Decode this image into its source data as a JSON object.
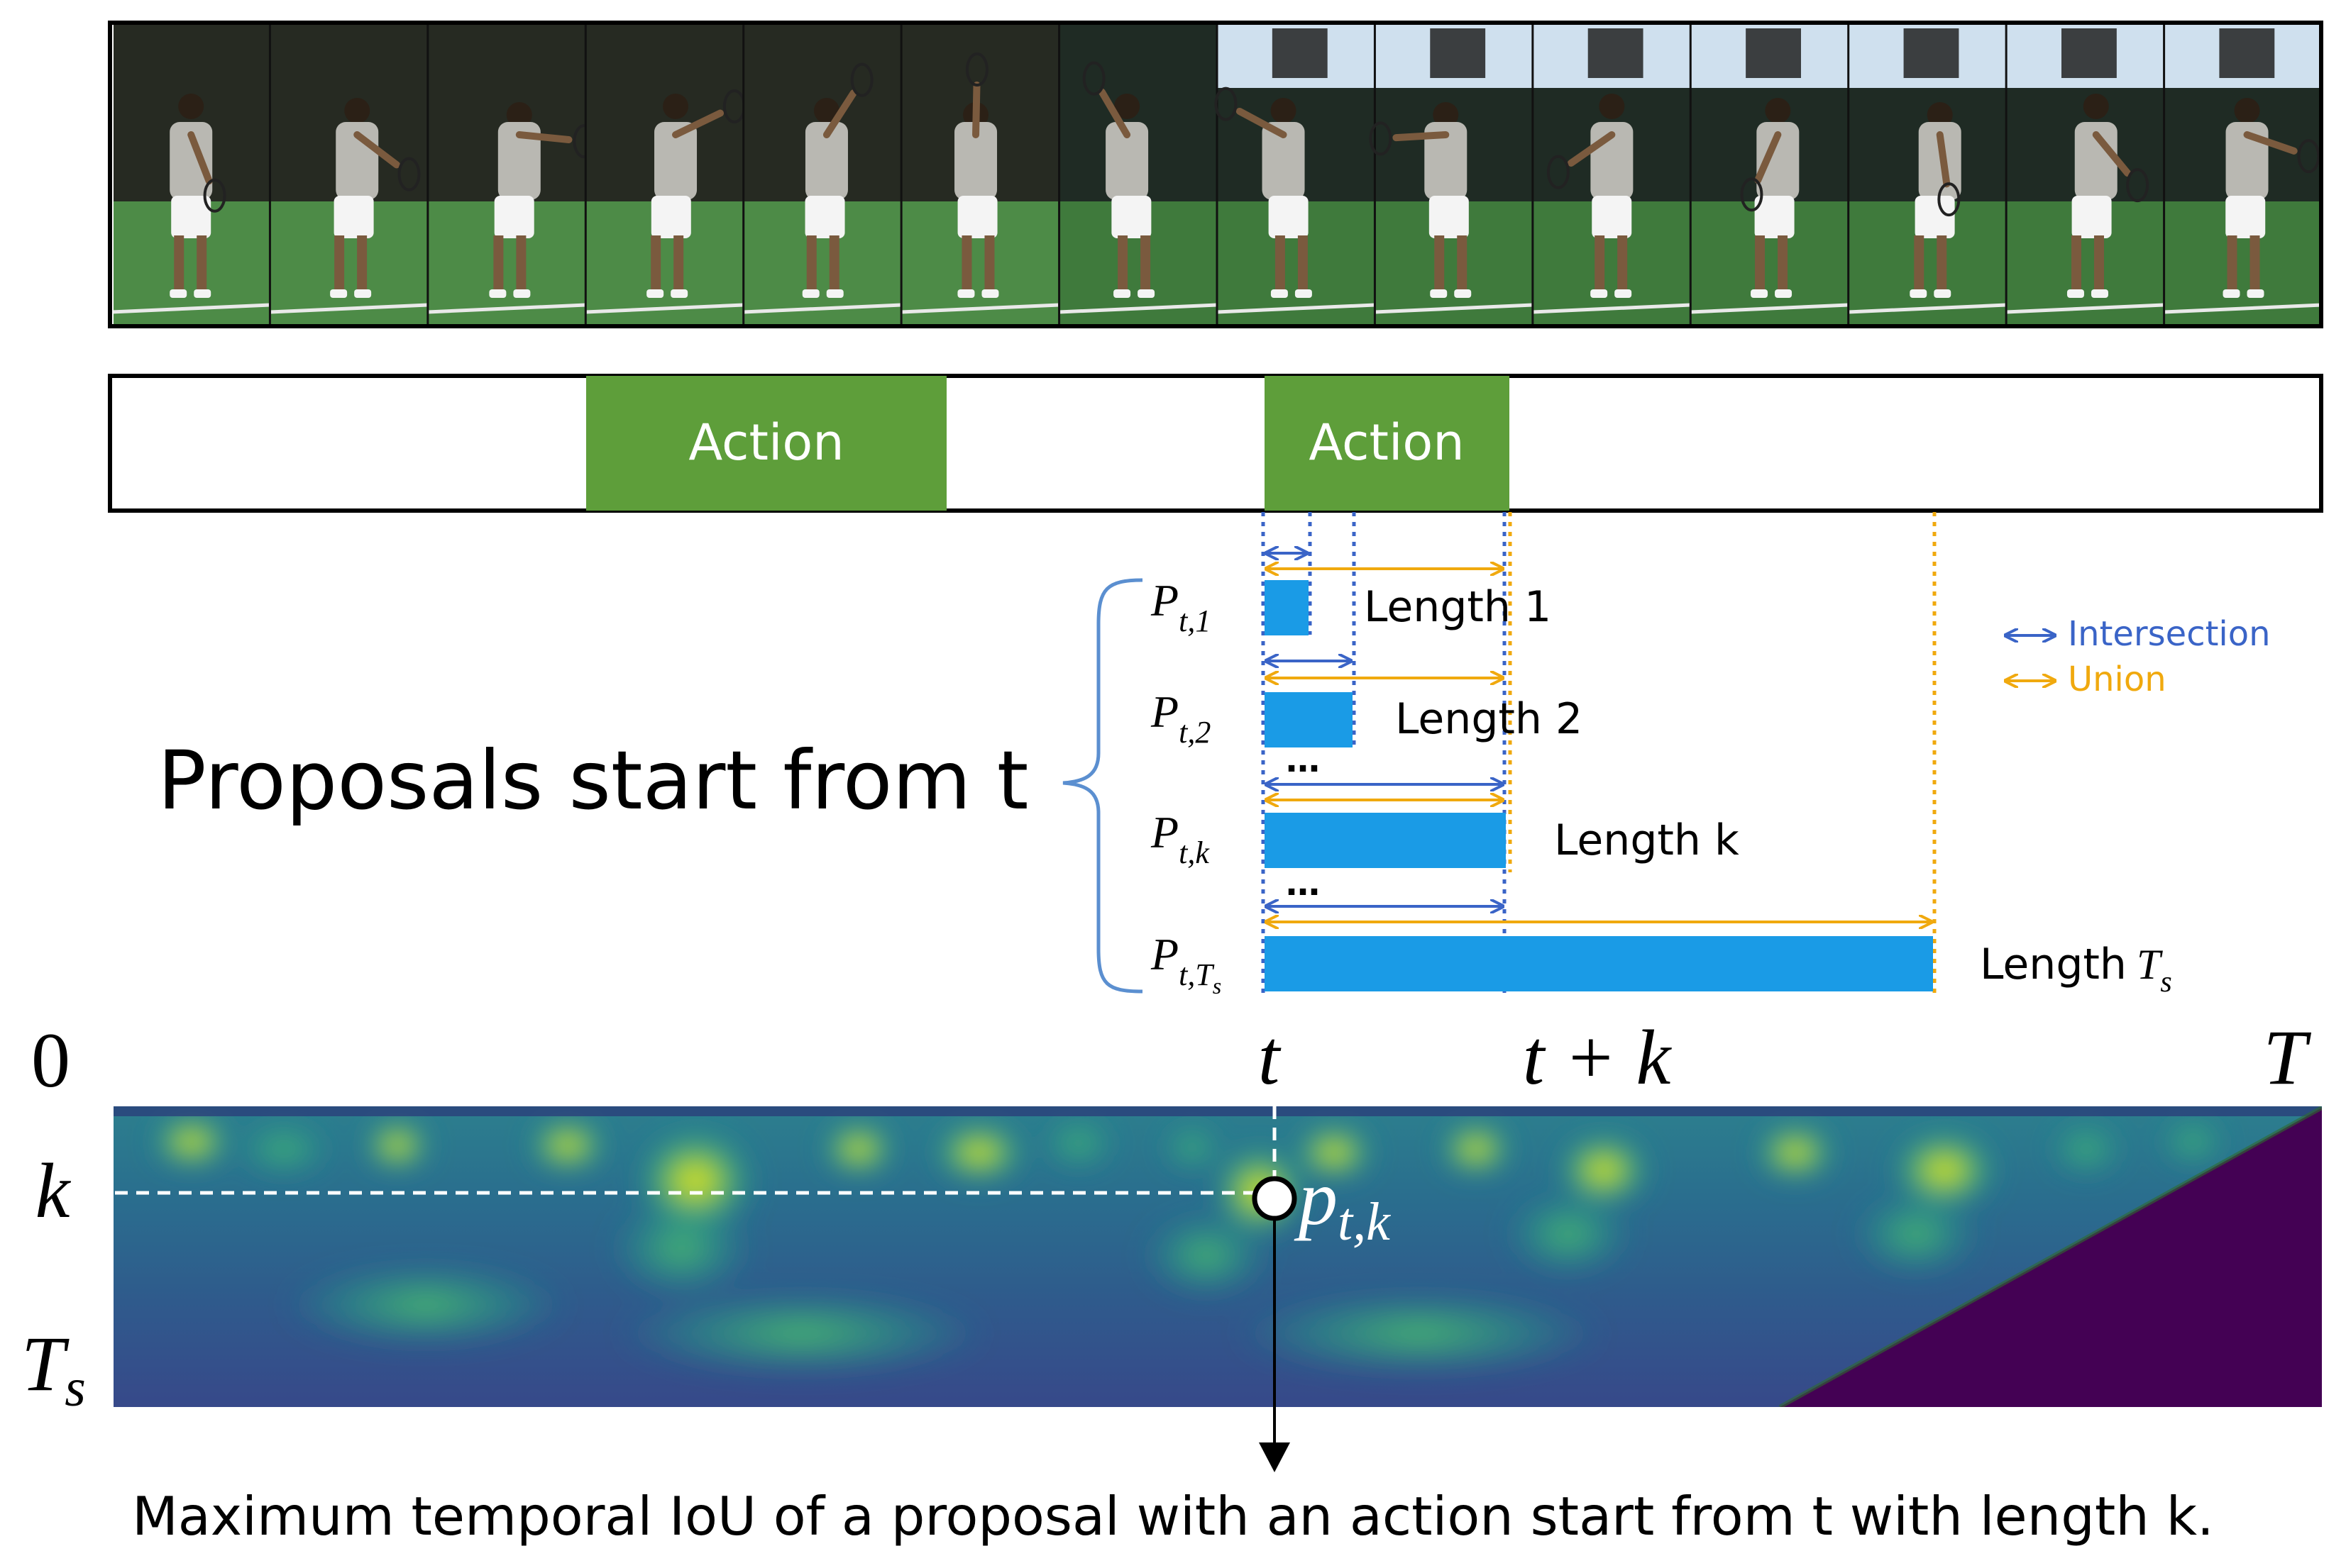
{
  "video_strip": {
    "description_label": ""
  },
  "action_bar": {
    "segments": [
      {
        "label": "Action"
      },
      {
        "label": "Action"
      }
    ],
    "colors": {
      "action_fill": "#5e9e3a",
      "bar_stroke": "#000000"
    }
  },
  "proposals": {
    "group_label": "Proposals start from t",
    "rows": [
      {
        "name": "P_{t,1}",
        "main": "P",
        "sub": "t,1",
        "length_label": "Length 1"
      },
      {
        "name": "P_{t,2}",
        "main": "P",
        "sub": "t,2",
        "length_label": "Length 2"
      },
      {
        "name": "P_{t,k}",
        "main": "P",
        "sub": "t,k",
        "length_label": "Length k"
      },
      {
        "name": "P_{t,T_s}",
        "main": "P",
        "sub": "t,T",
        "sub2": "s",
        "length_label": "Length",
        "length_label_math": "T",
        "length_label_math_sub": "s"
      }
    ],
    "ellipsis": "…",
    "colors": {
      "bar": "#1a9be6",
      "intersection": "#3a64c7",
      "union": "#f0a90e"
    }
  },
  "legend": {
    "items": [
      {
        "label": "Intersection",
        "color": "#3a64c7"
      },
      {
        "label": "Union",
        "color": "#f0a90e"
      }
    ]
  },
  "heatmap_axes": {
    "x_start": "0",
    "x_t": "t",
    "x_tk": "t + k",
    "x_end": "T",
    "y_k": "k",
    "y_ts_main": "T",
    "y_ts_sub": "s",
    "point_main": "p",
    "point_sub": "t,k"
  },
  "caption": "Maximum temporal IoU of a proposal with an action start from t with length k."
}
